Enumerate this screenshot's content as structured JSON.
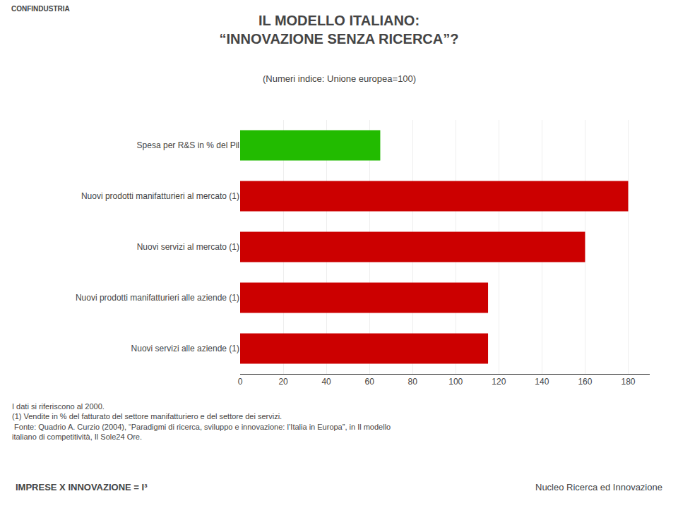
{
  "chart_data": {
    "type": "bar",
    "orientation": "horizontal",
    "header": "CONFINDUSTRIA",
    "title": "IL MODELLO ITALIANO:\n“INNOVAZIONE SENZA RICERCA”?",
    "subtitle": "(Numeri indice: Unione europea=100)",
    "categories": [
      "Nuovi servizi alle aziende (1)",
      "Nuovi prodotti manifatturieri alle aziende (1)",
      "Nuovi servizi al mercato (1)",
      "Nuovi prodotti manifatturieri al mercato (1)",
      "Spesa per R&S in % del Pil"
    ],
    "values": [
      115,
      115,
      160,
      180,
      65
    ],
    "colors": [
      "#cc0000",
      "#cc0000",
      "#cc0000",
      "#cc0000",
      "#22bb00"
    ],
    "xlim": [
      0,
      190
    ],
    "xticks": [
      0,
      20,
      40,
      60,
      80,
      100,
      120,
      140,
      160,
      180
    ],
    "grid": true,
    "notes": [
      "I dati si riferiscono al 2000.",
      "(1) Vendite in % del fatturato del settore manifatturiero e del settore dei servizi.",
      " Fonte: Quadrio A. Curzio (2004), “Paradigmi di ricerca, sviluppo e innovazione: l’Italia in Europa”, in Il modello",
      "italiano di competitività, Il Sole24 Ore."
    ],
    "footer_left": "IMPRESE X INNOVAZIONE = I³",
    "footer_right": "Nucleo Ricerca ed Innovazione"
  }
}
